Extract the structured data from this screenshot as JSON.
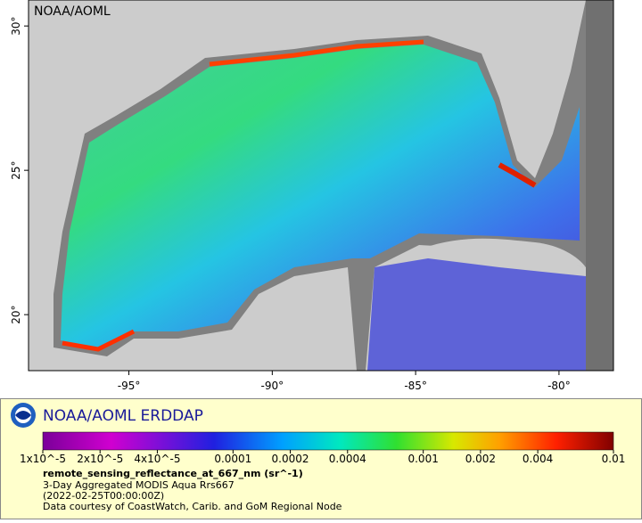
{
  "map": {
    "watermark": "NOAA/AOML",
    "lat_range": [
      18.06,
      30.9
    ],
    "lon_range": [
      -98.5,
      -78.1
    ],
    "lat_ticks": [
      {
        "value": 20,
        "label": "20°"
      },
      {
        "value": 25,
        "label": "25°"
      },
      {
        "value": 30,
        "label": "30°"
      }
    ],
    "lon_ticks": [
      {
        "value": -95,
        "label": "-95°"
      },
      {
        "value": -90,
        "label": "-90°"
      },
      {
        "value": -85,
        "label": "-85°"
      },
      {
        "value": -80,
        "label": "-80°"
      }
    ]
  },
  "legend": {
    "title": "NOAA/AOML ERDDAP",
    "colorbar": {
      "scale": "log",
      "range": [
        1e-05,
        0.01
      ],
      "ticks": [
        {
          "value": 1e-05,
          "label": "1x10^-5"
        },
        {
          "value": 2e-05,
          "label": "2x10^-5"
        },
        {
          "value": 4e-05,
          "label": "4x10^-5"
        },
        0.0001,
        0.0002,
        0.0004,
        0.001,
        0.002,
        0.004,
        0.01
      ]
    },
    "variable": "remote_sensing_reflectance_at_667_nm (sr^-1)",
    "lines": [
      "3-Day Aggregated MODIS Aqua Rrs667",
      "(2022-02-25T00:00:00Z)",
      "Data courtesy of CoastWatch, Carib. and GoM Regional Node"
    ]
  }
}
